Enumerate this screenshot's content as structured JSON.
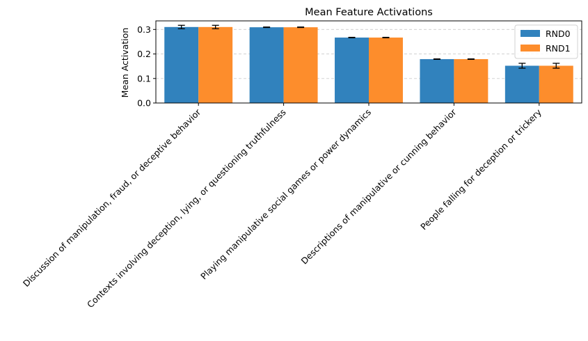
{
  "chart_data": {
    "type": "bar",
    "title": "Mean Feature Activations",
    "xlabel": "",
    "ylabel": "Mean Activation",
    "ylim": [
      0,
      0.335
    ],
    "yticks": [
      0.0,
      0.1,
      0.2,
      0.3
    ],
    "ytick_labels": [
      "0.0",
      "0.1",
      "0.2",
      "0.3"
    ],
    "grid": "y-dashed",
    "legend_position": "top-right",
    "categories": [
      "Discussion of manipulation, fraud, or deceptive behavior",
      "Contexts involving deception, lying, or questioning truthfulness",
      "Playing manipulative social games or power dynamics",
      "Descriptions of manipulative or cunning behavior",
      "People falling for deception or trickery"
    ],
    "series": [
      {
        "name": "RND0",
        "color": "#3182bd",
        "values": [
          0.31,
          0.309,
          0.267,
          0.179,
          0.152
        ],
        "errors": [
          0.007,
          0.001,
          0.001,
          0.001,
          0.01
        ]
      },
      {
        "name": "RND1",
        "color": "#fd8d2c",
        "values": [
          0.31,
          0.309,
          0.267,
          0.179,
          0.152
        ],
        "errors": [
          0.007,
          0.001,
          0.001,
          0.001,
          0.01
        ]
      }
    ]
  }
}
